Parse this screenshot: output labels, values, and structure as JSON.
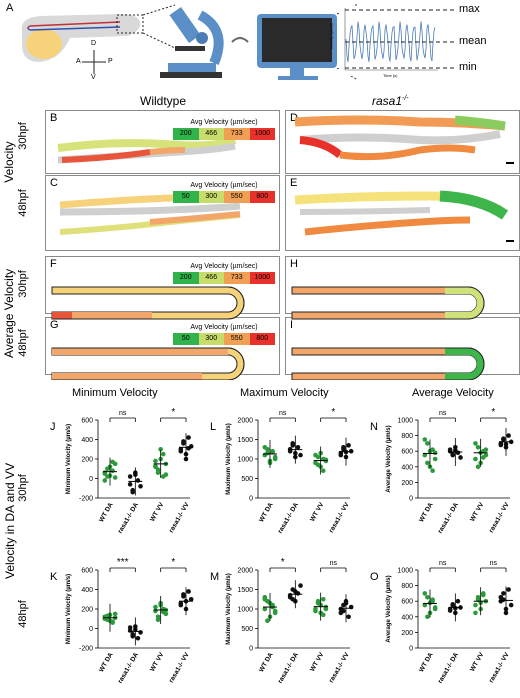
{
  "panel_letters": {
    "A": "A",
    "B": "B",
    "C": "C",
    "D": "D",
    "E": "E",
    "F": "F",
    "G": "G",
    "H": "H",
    "I": "I",
    "J": "J",
    "K": "K",
    "L": "L",
    "M": "M",
    "N": "N",
    "O": "O"
  },
  "schematic": {
    "compass": {
      "D": "D",
      "V": "V",
      "A": "A",
      "P": "P"
    },
    "trace_labels": {
      "max": "max",
      "mean": "mean",
      "min": "min"
    },
    "trace_axes": {
      "ylabel": "Velocity (µm/s)",
      "xlabel": "Time (s)"
    }
  },
  "columns": {
    "wildtype": "Wildtype",
    "mutant": "rasa1",
    "mutant_sup": "-/-"
  },
  "rows": {
    "velocity": "Velocity",
    "average_velocity": "Average Velocity",
    "dv": "Velocity in DA and VV",
    "t30": "30hpf",
    "t48": "48hpf"
  },
  "legends": {
    "title": "Avg Velocity (µm/sec)",
    "v30": [
      "200",
      "466",
      "733",
      "1000"
    ],
    "v48": [
      "50",
      "300",
      "550",
      "800"
    ],
    "colors": [
      "#2fb34a",
      "#c6dd6b",
      "#f0a055",
      "#e8312a"
    ]
  },
  "heatmap_colors": {
    "gray": "#cfcfcf",
    "yellow": "#f6e27a",
    "lightgreen": "#cfe27a",
    "green": "#3db54a",
    "orange": "#f29b55",
    "red": "#e8432d"
  },
  "chart_titles": {
    "min": "Minimum Velocity",
    "max": "Maximum Velocity",
    "avg": "Average Velocity"
  },
  "chart_data": [
    {
      "panel": "J",
      "type": "scatter",
      "ylabel": "Minimum Velocity (µm/s)",
      "ylim": [
        -200,
        600
      ],
      "yticks": [
        "-200",
        "0",
        "200",
        "400",
        "600"
      ],
      "categories": [
        "WT DA",
        "rasa1-/- DA",
        "WT VV",
        "rasa1-/- VV"
      ],
      "series": [
        {
          "values": [
            [
              60,
              20,
              120,
              80,
              150,
              50,
              100,
              30,
              170,
              10,
              -20
            ]
          ],
          "mean": 70,
          "color": "#2a9a3a"
        },
        {
          "values": [
            [
              -60,
              -120,
              40,
              -20,
              -80,
              20,
              -140,
              60
            ]
          ],
          "mean": -30,
          "color": "#111111"
        },
        {
          "values": [
            [
              120,
              60,
              200,
              250,
              40,
              180,
              90,
              300,
              20,
              150,
              130
            ]
          ],
          "mean": 150,
          "color": "#2a9a3a"
        },
        {
          "values": [
            [
              300,
              380,
              250,
              420,
              330,
              280,
              360,
              200,
              310
            ]
          ],
          "mean": 320,
          "color": "#111111"
        }
      ],
      "sig": [
        {
          "from": 0,
          "to": 1,
          "label": "ns"
        },
        {
          "from": 2,
          "to": 3,
          "label": "*"
        }
      ]
    },
    {
      "panel": "K",
      "type": "scatter",
      "ylabel": "Minimum Velocity (µm/s)",
      "ylim": [
        -200,
        600
      ],
      "yticks": [
        "-200",
        "0",
        "200",
        "400",
        "600"
      ],
      "categories": [
        "WT DA",
        "rasa1-/- DA",
        "WT VV",
        "rasa1-/- VV"
      ],
      "series": [
        {
          "values": [
            [
              100,
              130,
              80,
              60,
              150,
              120,
              90,
              140,
              70,
              110
            ]
          ],
          "mean": 110,
          "color": "#2a9a3a"
        },
        {
          "values": [
            [
              -20,
              -60,
              20,
              -100,
              -40,
              10,
              -80,
              -10
            ]
          ],
          "mean": -30,
          "color": "#111111"
        },
        {
          "values": [
            [
              180,
              120,
              260,
              200,
              150,
              220,
              90,
              240,
              170,
              190
            ]
          ],
          "mean": 190,
          "color": "#2a9a3a"
        },
        {
          "values": [
            [
              260,
              330,
              200,
              380,
              300,
              240,
              350,
              280
            ]
          ],
          "mean": 280,
          "color": "#111111"
        }
      ],
      "sig": [
        {
          "from": 0,
          "to": 1,
          "label": "***"
        },
        {
          "from": 2,
          "to": 3,
          "label": "*"
        }
      ]
    },
    {
      "panel": "L",
      "type": "scatter",
      "ylabel": "Maximum Velocity (µm/s)",
      "ylim": [
        0,
        2000
      ],
      "yticks": [
        "0",
        "500",
        "1000",
        "1500",
        "2000"
      ],
      "categories": [
        "WT DA",
        "rasa1-/- DA",
        "WT VV",
        "rasa1-/- VV"
      ],
      "series": [
        {
          "values": [
            [
              1100,
              1250,
              950,
              1200,
              1050,
              1300,
              1150,
              900,
              1180,
              1000
            ]
          ],
          "mean": 1130,
          "color": "#2a9a3a"
        },
        {
          "values": [
            [
              1200,
              1400,
              1050,
              1300,
              1100,
              1250,
              1350,
              1150
            ]
          ],
          "mean": 1240,
          "color": "#111111"
        },
        {
          "values": [
            [
              900,
              1050,
              800,
              1000,
              950,
              1100,
              850,
              1150,
              700,
              980
            ]
          ],
          "mean": 960,
          "color": "#2a9a3a"
        },
        {
          "values": [
            [
              1150,
              1250,
              1050,
              1350,
              1200,
              1100,
              1300,
              1180
            ]
          ],
          "mean": 1190,
          "color": "#111111"
        }
      ],
      "sig": [
        {
          "from": 0,
          "to": 1,
          "label": "ns"
        },
        {
          "from": 2,
          "to": 3,
          "label": "*"
        }
      ]
    },
    {
      "panel": "M",
      "type": "scatter",
      "ylabel": "Maximum Velocity (µm/s)",
      "ylim": [
        0,
        2000
      ],
      "yticks": [
        "0",
        "500",
        "1000",
        "1500",
        "2000"
      ],
      "categories": [
        "WT DA",
        "rasa1-/- DA",
        "WT VV",
        "rasa1-/- VV"
      ],
      "series": [
        {
          "values": [
            [
              1000,
              1200,
              800,
              1100,
              950,
              1300,
              700,
              1150,
              1050,
              900,
              1250
            ]
          ],
          "mean": 1050,
          "color": "#2a9a3a"
        },
        {
          "values": [
            [
              1300,
              1500,
              1200,
              1400,
              1600,
              1350,
              1250,
              1450
            ]
          ],
          "mean": 1380,
          "color": "#111111"
        },
        {
          "values": [
            [
              1000,
              1150,
              900,
              1250,
              1050,
              950,
              1200,
              1100,
              850,
              1000
            ]
          ],
          "mean": 1060,
          "color": "#2a9a3a"
        },
        {
          "values": [
            [
              900,
              1100,
              1200,
              800,
              1050,
              1000,
              950,
              1150
            ]
          ],
          "mean": 1020,
          "color": "#111111"
        }
      ],
      "sig": [
        {
          "from": 0,
          "to": 1,
          "label": "*"
        },
        {
          "from": 2,
          "to": 3,
          "label": "ns"
        }
      ]
    },
    {
      "panel": "N",
      "type": "scatter",
      "ylabel": "Average Velocity (µm/s)",
      "ylim": [
        0,
        1000
      ],
      "yticks": [
        "0",
        "200",
        "400",
        "600",
        "800",
        "1000"
      ],
      "categories": [
        "WT DA",
        "rasa1-/- DA",
        "WT VV",
        "rasa1-/- VV"
      ],
      "series": [
        {
          "values": [
            [
              550,
              700,
              400,
              620,
              500,
              750,
              450,
              600,
              350,
              580
            ]
          ],
          "mean": 570,
          "color": "#2a9a3a"
        },
        {
          "values": [
            [
              600,
              550,
              650,
              580,
              520,
              620,
              560,
              610
            ]
          ],
          "mean": 590,
          "color": "#111111"
        },
        {
          "values": [
            [
              500,
              650,
              450,
              600,
              550,
              700,
              400,
              580,
              520,
              620
            ]
          ],
          "mean": 580,
          "color": "#2a9a3a"
        },
        {
          "values": [
            [
              700,
              750,
              650,
              800,
              720,
              680,
              760,
              690
            ]
          ],
          "mean": 720,
          "color": "#111111"
        }
      ],
      "sig": [
        {
          "from": 0,
          "to": 1,
          "label": "ns"
        },
        {
          "from": 2,
          "to": 3,
          "label": "*"
        }
      ]
    },
    {
      "panel": "O",
      "type": "scatter",
      "ylabel": "Average Velocity (µm/s)",
      "ylim": [
        0,
        1000
      ],
      "yticks": [
        "0",
        "200",
        "400",
        "600",
        "800",
        "1000"
      ],
      "categories": [
        "WT DA",
        "rasa1-/- DA",
        "WT VV",
        "rasa1-/- VV"
      ],
      "series": [
        {
          "values": [
            [
              550,
              650,
              450,
              600,
              500,
              700,
              400,
              580,
              620,
              520
            ]
          ],
          "mean": 570,
          "color": "#2a9a3a"
        },
        {
          "values": [
            [
              500,
              550,
              450,
              600,
              520,
              480,
              560,
              510
            ]
          ],
          "mean": 520,
          "color": "#111111"
        },
        {
          "values": [
            [
              550,
              650,
              500,
              700,
              600,
              450,
              620,
              580,
              680
            ]
          ],
          "mean": 600,
          "color": "#2a9a3a"
        },
        {
          "values": [
            [
              600,
              700,
              500,
              750,
              550,
              650,
              620,
              450
            ]
          ],
          "mean": 610,
          "color": "#111111"
        }
      ],
      "sig": [
        {
          "from": 0,
          "to": 1,
          "label": "ns"
        },
        {
          "from": 2,
          "to": 3,
          "label": "ns"
        }
      ]
    }
  ]
}
